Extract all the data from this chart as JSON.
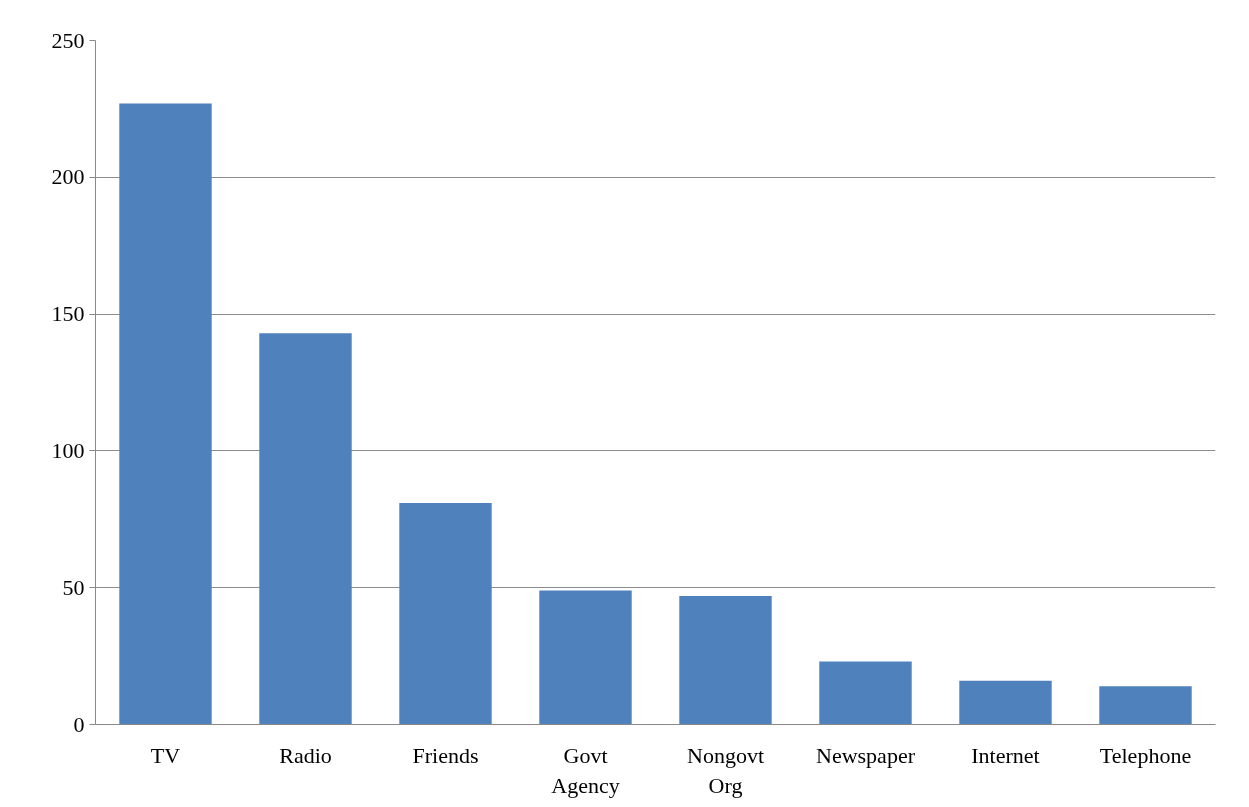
{
  "chart_data": {
    "type": "bar",
    "categories": [
      "TV",
      "Radio",
      "Friends",
      "Govt Agency",
      "Nongovt Org",
      "Newspaper",
      "Internet",
      "Telephone"
    ],
    "values": [
      227,
      143,
      81,
      49,
      47,
      23,
      16,
      14
    ],
    "color": "#4f81bd",
    "ylim": [
      0,
      250
    ],
    "yticks": [
      0,
      50,
      100,
      150,
      200,
      250
    ],
    "grid": "y"
  }
}
